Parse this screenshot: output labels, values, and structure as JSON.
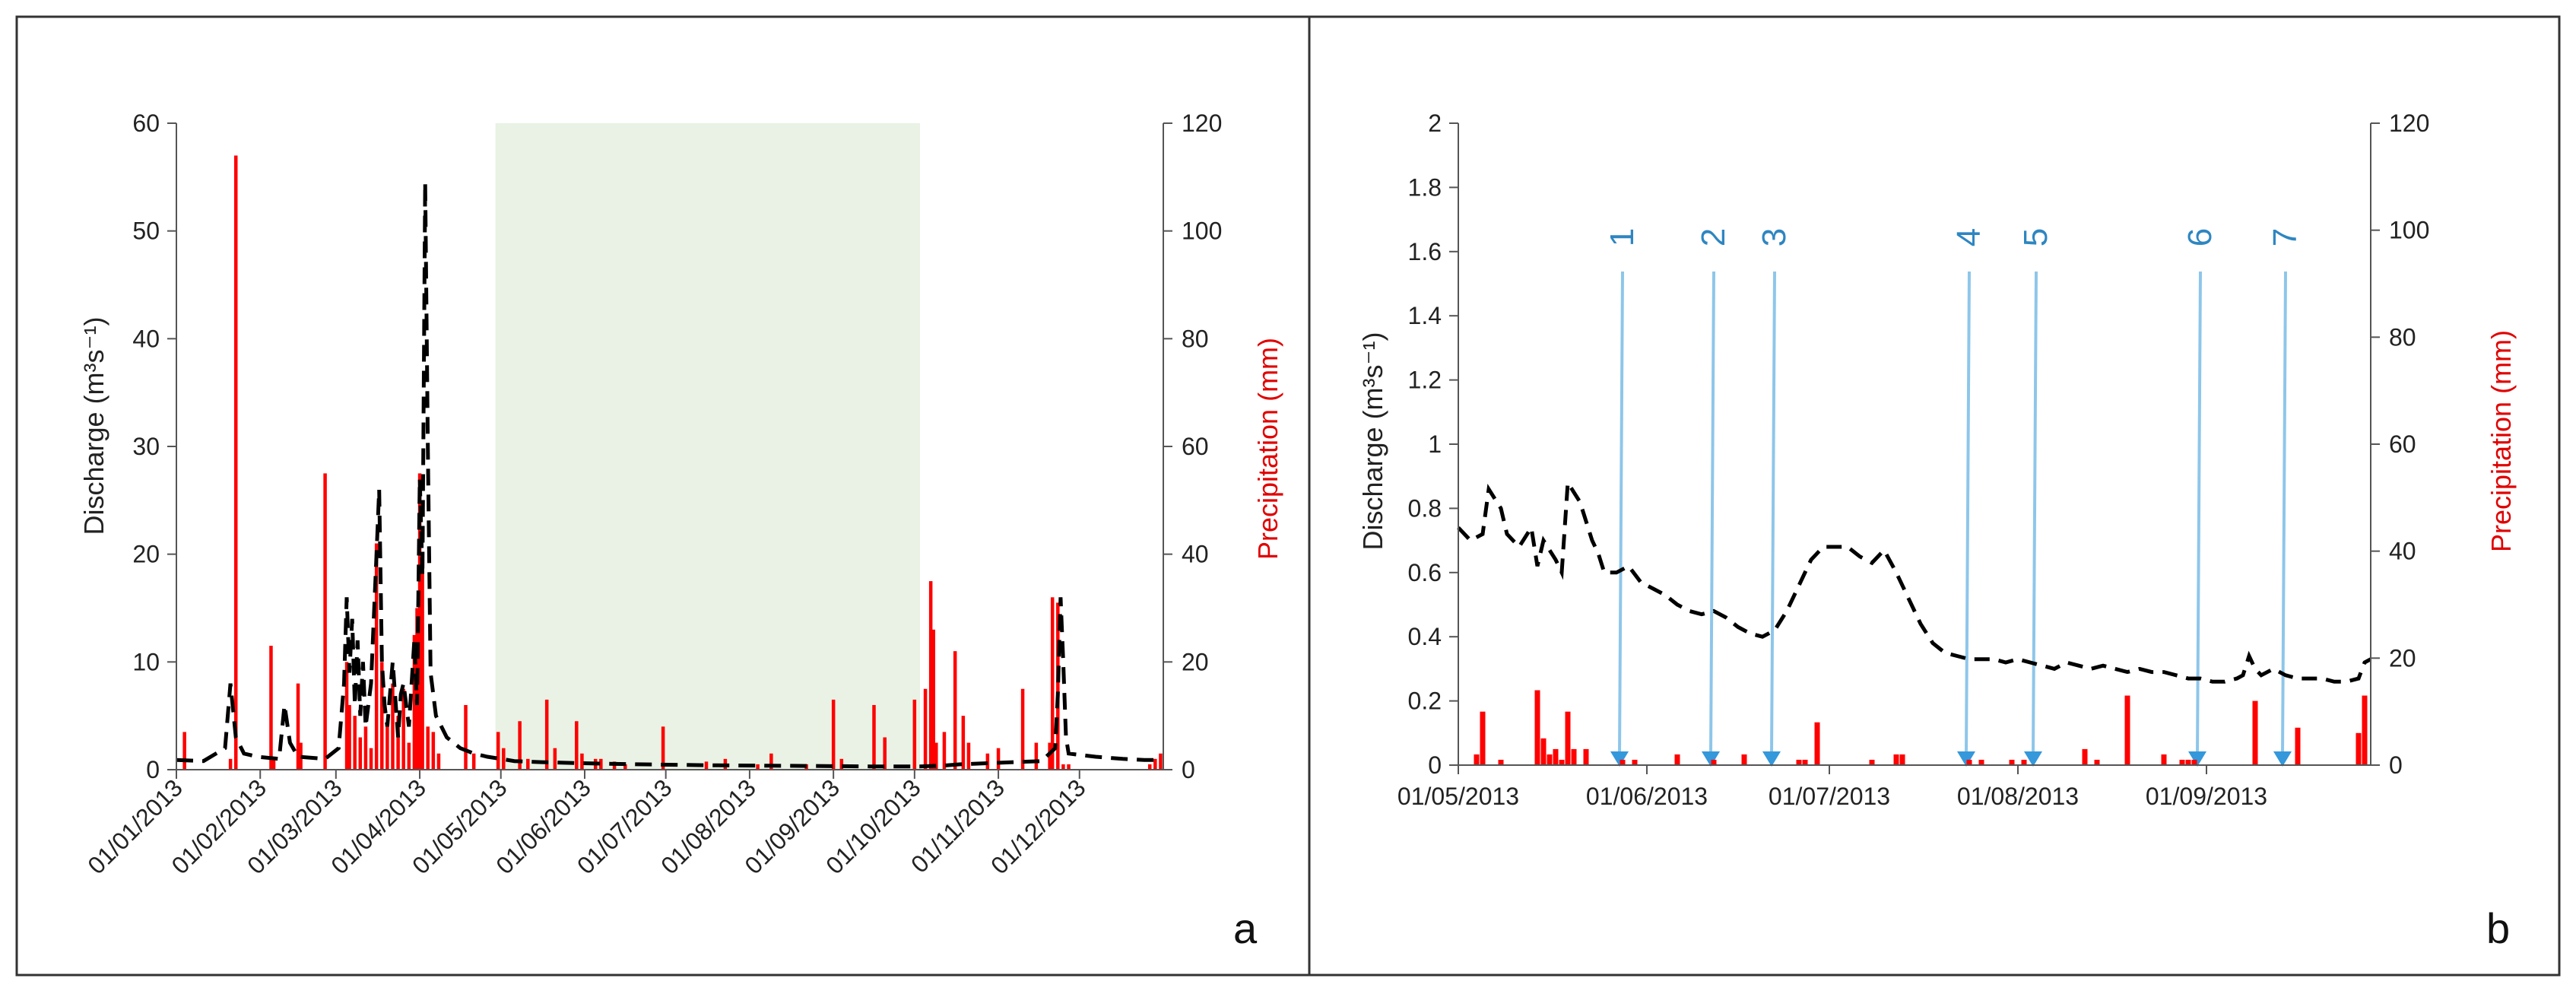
{
  "colors": {
    "precip": "#ff0000",
    "discharge": "#000000",
    "shade": "#e9f2e4",
    "sample": "#3498db",
    "sample_line": "#8ec6ea"
  },
  "chart_data": [
    {
      "type": "bar+line",
      "panel_label": "a",
      "ylabel": "Discharge (m³s⁻¹)",
      "ylabel2": "Precipitation (mm)",
      "ylim": [
        0,
        60
      ],
      "yticks": [
        "0",
        "10",
        "20",
        "30",
        "40",
        "50",
        "60"
      ],
      "y2lim": [
        0,
        120
      ],
      "y2ticks": [
        "0",
        "20",
        "40",
        "60",
        "80",
        "100",
        "120"
      ],
      "xlim": [
        0,
        365
      ],
      "xticks": [
        {
          "day": 0,
          "label": "01/01/2013"
        },
        {
          "day": 31,
          "label": "01/02/2013"
        },
        {
          "day": 59,
          "label": "01/03/2013"
        },
        {
          "day": 90,
          "label": "01/04/2013"
        },
        {
          "day": 120,
          "label": "01/05/2013"
        },
        {
          "day": 151,
          "label": "01/06/2013"
        },
        {
          "day": 181,
          "label": "01/07/2013"
        },
        {
          "day": 212,
          "label": "01/08/2013"
        },
        {
          "day": 243,
          "label": "01/09/2013"
        },
        {
          "day": 273,
          "label": "01/10/2013"
        },
        {
          "day": 304,
          "label": "01/11/2013"
        },
        {
          "day": 334,
          "label": "01/12/2013"
        }
      ],
      "shaded_period_days": [
        118,
        275
      ],
      "precipitation": {
        "name": "Precipitation (mm)",
        "days": [
          3,
          20,
          22,
          35,
          36,
          45,
          46,
          55,
          63,
          64,
          66,
          68,
          70,
          72,
          74,
          76,
          78,
          80,
          82,
          84,
          86,
          88,
          89,
          90,
          91,
          93,
          95,
          97,
          107,
          110,
          119,
          121,
          127,
          130,
          137,
          140,
          148,
          150,
          155,
          157,
          162,
          166,
          180,
          196,
          203,
          215,
          220,
          233,
          243,
          246,
          258,
          262,
          273,
          277,
          279,
          280,
          281,
          284,
          288,
          291,
          293,
          300,
          304,
          313,
          318,
          323,
          324,
          326,
          328,
          330,
          360,
          362,
          364
        ],
        "values": [
          7,
          2,
          114,
          23,
          2,
          16,
          5,
          55,
          20,
          12,
          10,
          6,
          8,
          4,
          42,
          20,
          8,
          16,
          10,
          15,
          5,
          25,
          30,
          55,
          40,
          8,
          7,
          3,
          12,
          3,
          7,
          4,
          9,
          2,
          13,
          4,
          9,
          3,
          2,
          2,
          1.5,
          1,
          8,
          1.5,
          2,
          1,
          3,
          1,
          13,
          2,
          12,
          6,
          13,
          15,
          35,
          26,
          5,
          7,
          22,
          10,
          5,
          3,
          4,
          15,
          5,
          5,
          32,
          31,
          1,
          1,
          1,
          2,
          3
        ]
      },
      "discharge": {
        "name": "Discharge (m³s⁻¹)",
        "days": [
          0,
          10,
          18,
          20,
          22,
          25,
          30,
          38,
          40,
          42,
          45,
          55,
          60,
          62,
          63,
          64,
          65,
          66,
          67,
          68,
          69,
          70,
          72,
          74,
          75,
          76,
          77,
          78,
          80,
          82,
          83,
          84,
          86,
          88,
          89,
          90,
          91,
          92,
          93,
          94,
          96,
          98,
          100,
          105,
          110,
          115,
          120,
          125,
          135,
          150,
          170,
          200,
          230,
          260,
          275,
          285,
          290,
          300,
          310,
          320,
          325,
          326,
          327,
          328,
          329,
          330,
          340,
          350,
          358,
          365
        ],
        "values": [
          0.9,
          0.8,
          2,
          8,
          3,
          1.5,
          1.2,
          1,
          6,
          2.5,
          1.2,
          1,
          2,
          8,
          16,
          9,
          14,
          6,
          12,
          5,
          10,
          4,
          8,
          20,
          26,
          10,
          6,
          4,
          10,
          3,
          7,
          8,
          4,
          12,
          6,
          27,
          18,
          54.5,
          30,
          9,
          5,
          4,
          3,
          2,
          1.5,
          1.2,
          1,
          0.8,
          0.7,
          0.6,
          0.5,
          0.4,
          0.35,
          0.3,
          0.3,
          0.4,
          0.5,
          0.6,
          0.7,
          0.8,
          2,
          7,
          16,
          10,
          3,
          1.5,
          1.2,
          1,
          0.9,
          0.9
        ]
      }
    },
    {
      "type": "bar+line",
      "panel_label": "b",
      "ylabel": "Discharge (m³s⁻¹)",
      "ylabel2": "Precipitation (mm)",
      "ylim": [
        0,
        2
      ],
      "yticks": [
        "0",
        "0.2",
        "0.4",
        "0.6",
        "0.8",
        "1",
        "1.2",
        "1.4",
        "1.6",
        "1.8",
        "2"
      ],
      "y2lim": [
        0,
        120
      ],
      "y2ticks": [
        "0",
        "20",
        "40",
        "60",
        "80",
        "100",
        "120"
      ],
      "xlim": [
        0,
        150
      ],
      "xticks": [
        {
          "day": 0,
          "label": "01/05/2013"
        },
        {
          "day": 31,
          "label": "01/06/2013"
        },
        {
          "day": 61,
          "label": "01/07/2013"
        },
        {
          "day": 92,
          "label": "01/08/2013"
        },
        {
          "day": 123,
          "label": "01/09/2013"
        }
      ],
      "precipitation": {
        "name": "Precipitation (mm)",
        "days": [
          3,
          4,
          7,
          13,
          14,
          15,
          16,
          17,
          18,
          19,
          21,
          27,
          29,
          36,
          42,
          47,
          56,
          57,
          59,
          68,
          72,
          73,
          84,
          86,
          91,
          93,
          103,
          105,
          110,
          116,
          119,
          120,
          121,
          131,
          138,
          148,
          149
        ],
        "values": [
          2,
          10,
          1,
          14,
          5,
          2,
          3,
          1,
          10,
          3,
          3,
          1,
          1,
          2,
          1,
          2,
          1,
          1,
          8,
          1,
          2,
          2,
          1,
          1,
          1,
          1,
          3,
          1,
          13,
          2,
          1,
          1,
          1,
          12,
          7,
          6,
          13
        ]
      },
      "discharge": {
        "name": "Discharge (m³s⁻¹)",
        "days": [
          0,
          2,
          4,
          5,
          7,
          8,
          10,
          12,
          13,
          14,
          16,
          17,
          18,
          20,
          22,
          23,
          24,
          26,
          28,
          30,
          32,
          34,
          36,
          38,
          40,
          42,
          44,
          46,
          48,
          50,
          52,
          54,
          56,
          58,
          60,
          62,
          64,
          66,
          68,
          70,
          72,
          74,
          76,
          78,
          80,
          82,
          84,
          86,
          88,
          90,
          92,
          94,
          96,
          98,
          100,
          102,
          104,
          106,
          108,
          110,
          112,
          114,
          116,
          118,
          120,
          122,
          124,
          126,
          128,
          129,
          130,
          131,
          132,
          134,
          136,
          138,
          140,
          142,
          144,
          146,
          148,
          149,
          150
        ],
        "values": [
          0.74,
          0.7,
          0.72,
          0.86,
          0.8,
          0.72,
          0.68,
          0.74,
          0.62,
          0.7,
          0.64,
          0.6,
          0.88,
          0.82,
          0.7,
          0.66,
          0.6,
          0.6,
          0.62,
          0.57,
          0.55,
          0.53,
          0.5,
          0.48,
          0.47,
          0.48,
          0.46,
          0.43,
          0.41,
          0.4,
          0.42,
          0.48,
          0.56,
          0.64,
          0.68,
          0.68,
          0.68,
          0.65,
          0.63,
          0.67,
          0.6,
          0.52,
          0.44,
          0.38,
          0.35,
          0.34,
          0.33,
          0.33,
          0.33,
          0.32,
          0.33,
          0.32,
          0.31,
          0.3,
          0.32,
          0.31,
          0.3,
          0.31,
          0.3,
          0.29,
          0.3,
          0.29,
          0.29,
          0.28,
          0.27,
          0.27,
          0.26,
          0.26,
          0.27,
          0.28,
          0.34,
          0.3,
          0.28,
          0.3,
          0.28,
          0.27,
          0.27,
          0.27,
          0.26,
          0.26,
          0.27,
          0.32,
          0.33
        ]
      },
      "sampling_events": [
        {
          "label": "1",
          "day": 27
        },
        {
          "label": "2",
          "day": 42
        },
        {
          "label": "3",
          "day": 52
        },
        {
          "label": "4",
          "day": 84
        },
        {
          "label": "5",
          "day": 95
        },
        {
          "label": "6",
          "day": 122
        },
        {
          "label": "7",
          "day": 136
        }
      ]
    }
  ]
}
